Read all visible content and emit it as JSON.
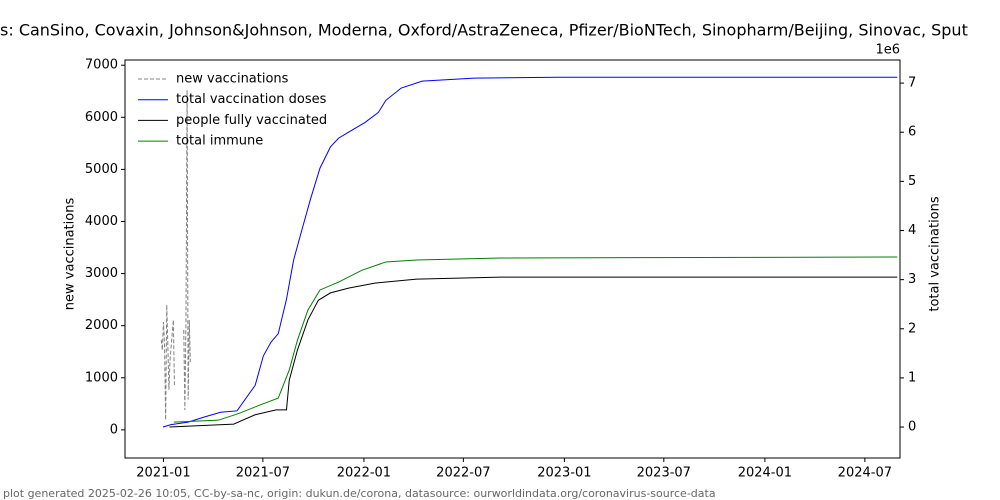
{
  "chart_data": {
    "type": "line",
    "title": "s: CanSino, Covaxin, Johnson&Johnson, Moderna, Oxford/AstraZeneca, Pfizer/BioNTech, Sinopharm/Beijing, Sinovac, Sput",
    "y_label": "new vaccinations",
    "y2_label": "total vaccinations",
    "y2_offset_label": "1e6",
    "footer": "plot generated 2025-02-26 10:05, CC-by-sa-nc, origin: dukun.de/corona, datasource: ourworldindata.org/coronavirus-source-data",
    "legend": "upper left",
    "xlim": [
      "2020-10-23",
      "2024-09-03"
    ],
    "xticks": [
      "2021-01",
      "2021-07",
      "2022-01",
      "2022-07",
      "2023-01",
      "2023-07",
      "2024-01",
      "2024-07"
    ],
    "ylim": [
      -540,
      7100
    ],
    "yticks": [
      0,
      1000,
      2000,
      3000,
      4000,
      5000,
      6000,
      7000
    ],
    "y2lim": [
      -630000,
      7470000
    ],
    "y2ticks": [
      0,
      {
        "value": 1000000,
        "label": "1"
      },
      {
        "value": 2000000,
        "label": "2"
      },
      {
        "value": 3000000,
        "label": "3"
      },
      {
        "value": 4000000,
        "label": "4"
      },
      {
        "value": 5000000,
        "label": "5"
      },
      {
        "value": 6000000,
        "label": "6"
      },
      {
        "value": 7000000,
        "label": "7"
      }
    ],
    "series": [
      {
        "name": "new vaccinations",
        "color": "#808080",
        "dashed": true,
        "x": [
          "2020-12-28",
          "2020-12-30",
          "2021-01-01",
          "2021-01-03",
          "2021-01-05",
          "2021-01-07",
          "2021-01-09",
          "2021-01-11",
          "2021-01-13",
          "2021-01-19",
          "2021-01-21",
          "2021-01-28",
          "2021-02-07",
          "2021-02-09",
          "2021-02-11",
          "2021-02-13",
          "2021-02-15",
          "2021-02-17",
          "2021-02-19"
        ],
        "values": [
          1730,
          1530,
          2070,
          1630,
          190,
          2400,
          1630,
          770,
          1340,
          2110,
          860,
          null,
          1920,
          380,
          2110,
          6520,
          580,
          2110,
          1300
        ]
      },
      {
        "name": "total vaccination doses",
        "color": "#0000ff",
        "axis": "y2",
        "x": [
          "2020-12-31",
          "2021-01-15",
          "2021-02-15",
          "2021-03-15",
          "2021-04-15",
          "2021-05-15",
          "2021-06-17",
          "2021-07-02",
          "2021-07-16",
          "2021-07-29",
          "2021-08-13",
          "2021-08-26",
          "2021-09-11",
          "2021-09-26",
          "2021-10-13",
          "2021-11-01",
          "2021-11-16",
          "2021-12-01",
          "2022-01-03",
          "2022-01-27",
          "2022-02-10",
          "2022-03-10",
          "2022-04-17",
          "2022-07-21",
          "2022-12-20",
          "2024-08-29"
        ],
        "values": [
          0,
          50000,
          100000,
          200000,
          300000,
          330000,
          850000,
          1450000,
          1730000,
          1900000,
          2600000,
          3400000,
          4050000,
          4650000,
          5270000,
          5700000,
          5880000,
          5980000,
          6200000,
          6400000,
          6650000,
          6900000,
          7040000,
          7100000,
          7120000,
          7120000
        ]
      },
      {
        "name": "people fully vaccinated",
        "color": "#000000",
        "axis": "y2",
        "x": [
          "2021-01-12",
          "2021-05-09",
          "2021-06-17",
          "2021-07-25",
          "2021-08-13",
          "2021-08-18",
          "2021-09-02",
          "2021-09-21",
          "2021-10-10",
          "2021-11-01",
          "2021-12-05",
          "2022-01-21",
          "2022-04-07",
          "2022-09-07",
          "2024-08-29"
        ],
        "values": [
          0,
          60000,
          250000,
          350000,
          350000,
          950000,
          1570000,
          2180000,
          2580000,
          2730000,
          2830000,
          2930000,
          3010000,
          3050000,
          3050000
        ]
      },
      {
        "name": "total immune",
        "color": "#008000",
        "axis": "y2",
        "x": [
          "2021-01-20",
          "2021-04-11",
          "2021-05-19",
          "2021-06-26",
          "2021-07-29",
          "2021-08-18",
          "2021-09-02",
          "2021-09-21",
          "2021-10-13",
          "2021-11-16",
          "2021-12-28",
          "2022-02-10",
          "2022-04-07",
          "2022-09-07",
          "2024-08-29"
        ],
        "values": [
          100000,
          140000,
          280000,
          450000,
          590000,
          1160000,
          1770000,
          2380000,
          2790000,
          2950000,
          3190000,
          3360000,
          3400000,
          3440000,
          3460000
        ]
      }
    ]
  }
}
